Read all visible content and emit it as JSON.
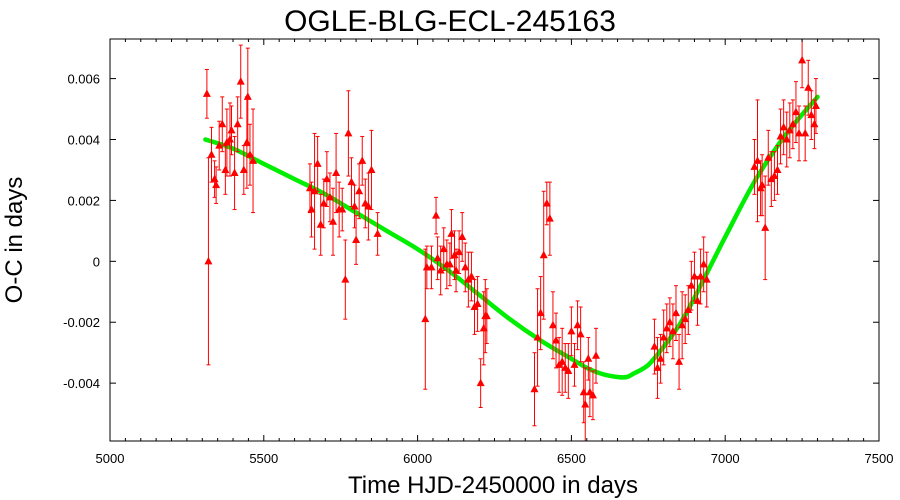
{
  "chart_data": {
    "type": "scatter",
    "title": "OGLE-BLG-ECL-245163",
    "xlabel": "Time HJD-2450000 in days",
    "ylabel": "O-C in days",
    "xlim": [
      5000,
      7500
    ],
    "ylim": [
      -0.0059,
      0.0073
    ],
    "grid": false,
    "x_ticks": [
      5000,
      5500,
      6000,
      6500,
      7000,
      7500
    ],
    "x_tick_labels": [
      "5000",
      "5500",
      "6000",
      "6500",
      "7000",
      "7500"
    ],
    "y_ticks": [
      -0.004,
      -0.002,
      0,
      0.002,
      0.004,
      0.006
    ],
    "y_tick_labels": [
      "-0.004",
      "-0.002",
      "0",
      "0.002",
      "0.004",
      "0.006"
    ],
    "colors": {
      "points": "#ff0000",
      "fit": "#00ee00",
      "axes": "#000000"
    },
    "series": [
      {
        "kind": "points_with_errorbars",
        "points": [
          {
            "x": 5315,
            "y": 0.0055,
            "err": 0.0008
          },
          {
            "x": 5320,
            "y": 0.0,
            "err": 0.0034
          },
          {
            "x": 5330,
            "y": 0.0035,
            "err": 0.0009
          },
          {
            "x": 5340,
            "y": 0.0027,
            "err": 0.0006
          },
          {
            "x": 5345,
            "y": 0.0025,
            "err": 0.0006
          },
          {
            "x": 5355,
            "y": 0.0038,
            "err": 0.0008
          },
          {
            "x": 5365,
            "y": 0.0045,
            "err": 0.0009
          },
          {
            "x": 5375,
            "y": 0.003,
            "err": 0.0008
          },
          {
            "x": 5380,
            "y": 0.0039,
            "err": 0.0011
          },
          {
            "x": 5390,
            "y": 0.004,
            "err": 0.0012
          },
          {
            "x": 5395,
            "y": 0.0043,
            "err": 0.0008
          },
          {
            "x": 5405,
            "y": 0.0029,
            "err": 0.0012
          },
          {
            "x": 5415,
            "y": 0.0045,
            "err": 0.0009
          },
          {
            "x": 5425,
            "y": 0.0059,
            "err": 0.0012
          },
          {
            "x": 5435,
            "y": 0.003,
            "err": 0.0008
          },
          {
            "x": 5445,
            "y": 0.0039,
            "err": 0.0015
          },
          {
            "x": 5448,
            "y": 0.0054,
            "err": 0.0016
          },
          {
            "x": 5455,
            "y": 0.0035,
            "err": 0.001
          },
          {
            "x": 5465,
            "y": 0.0033,
            "err": 0.0017
          },
          {
            "x": 5650,
            "y": 0.0024,
            "err": 0.0008
          },
          {
            "x": 5655,
            "y": 0.0017,
            "err": 0.0009
          },
          {
            "x": 5665,
            "y": 0.0023,
            "err": 0.0019
          },
          {
            "x": 5675,
            "y": 0.0032,
            "err": 0.0009
          },
          {
            "x": 5685,
            "y": 0.0012,
            "err": 0.001
          },
          {
            "x": 5695,
            "y": 0.0019,
            "err": 0.0008
          },
          {
            "x": 5705,
            "y": 0.0027,
            "err": 0.0009
          },
          {
            "x": 5715,
            "y": 0.0021,
            "err": 0.0008
          },
          {
            "x": 5725,
            "y": 0.0013,
            "err": 0.0011
          },
          {
            "x": 5735,
            "y": 0.0029,
            "err": 0.0013
          },
          {
            "x": 5745,
            "y": 0.0017,
            "err": 0.0009
          },
          {
            "x": 5755,
            "y": 0.0017,
            "err": 0.0007
          },
          {
            "x": 5765,
            "y": -0.0006,
            "err": 0.0013
          },
          {
            "x": 5775,
            "y": 0.0042,
            "err": 0.0014
          },
          {
            "x": 5785,
            "y": 0.0026,
            "err": 0.0008
          },
          {
            "x": 5795,
            "y": 0.0018,
            "err": 0.0007
          },
          {
            "x": 5800,
            "y": 0.0007,
            "err": 0.0008
          },
          {
            "x": 5810,
            "y": 0.0023,
            "err": 0.0009
          },
          {
            "x": 5820,
            "y": 0.0033,
            "err": 0.0008
          },
          {
            "x": 5830,
            "y": 0.0019,
            "err": 0.0008
          },
          {
            "x": 5840,
            "y": 0.0018,
            "err": 0.0011
          },
          {
            "x": 5850,
            "y": 0.003,
            "err": 0.0013
          },
          {
            "x": 5870,
            "y": 0.0009,
            "err": 0.0007
          },
          {
            "x": 6025,
            "y": -0.0019,
            "err": 0.0023
          },
          {
            "x": 6030,
            "y": -0.0002,
            "err": 0.0007
          },
          {
            "x": 6045,
            "y": -0.0002,
            "err": 0.0007
          },
          {
            "x": 6060,
            "y": 0.0015,
            "err": 0.0006
          },
          {
            "x": 6065,
            "y": 0.0001,
            "err": 0.0007
          },
          {
            "x": 6075,
            "y": -0.0003,
            "err": 0.0008
          },
          {
            "x": 6085,
            "y": 0.0004,
            "err": 0.0007
          },
          {
            "x": 6095,
            "y": -0.0001,
            "err": 0.0008
          },
          {
            "x": 6105,
            "y": -0.0001,
            "err": 0.0007
          },
          {
            "x": 6110,
            "y": 0.0009,
            "err": 0.0008
          },
          {
            "x": 6120,
            "y": 0.0002,
            "err": 0.0008
          },
          {
            "x": 6125,
            "y": -0.0003,
            "err": 0.0007
          },
          {
            "x": 6135,
            "y": 0.0003,
            "err": 0.0007
          },
          {
            "x": 6145,
            "y": 0.0008,
            "err": 0.0008
          },
          {
            "x": 6155,
            "y": -0.0002,
            "err": 0.0008
          },
          {
            "x": 6165,
            "y": -0.0006,
            "err": 0.0009
          },
          {
            "x": 6175,
            "y": -0.0005,
            "err": 0.0008
          },
          {
            "x": 6185,
            "y": -0.0015,
            "err": 0.0009
          },
          {
            "x": 6195,
            "y": -0.0014,
            "err": 0.0009
          },
          {
            "x": 6205,
            "y": -0.004,
            "err": 0.0008
          },
          {
            "x": 6215,
            "y": -0.0022,
            "err": 0.0012
          },
          {
            "x": 6220,
            "y": -0.0018,
            "err": 0.0012
          },
          {
            "x": 6225,
            "y": -0.0018,
            "err": 0.0009
          },
          {
            "x": 6380,
            "y": -0.0042,
            "err": 0.0012
          },
          {
            "x": 6390,
            "y": -0.0025,
            "err": 0.0016
          },
          {
            "x": 6400,
            "y": -0.0017,
            "err": 0.0012
          },
          {
            "x": 6410,
            "y": 0.0002,
            "err": 0.0021
          },
          {
            "x": 6420,
            "y": 0.0019,
            "err": 0.0007
          },
          {
            "x": 6430,
            "y": 0.0014,
            "err": 0.0012
          },
          {
            "x": 6440,
            "y": -0.0021,
            "err": 0.0011
          },
          {
            "x": 6450,
            "y": -0.0026,
            "err": 0.0009
          },
          {
            "x": 6460,
            "y": -0.0034,
            "err": 0.0009
          },
          {
            "x": 6470,
            "y": -0.0033,
            "err": 0.0011
          },
          {
            "x": 6480,
            "y": -0.0035,
            "err": 0.0008
          },
          {
            "x": 6490,
            "y": -0.0036,
            "err": 0.0009
          },
          {
            "x": 6500,
            "y": -0.0023,
            "err": 0.0008
          },
          {
            "x": 6510,
            "y": -0.0034,
            "err": 0.0007
          },
          {
            "x": 6520,
            "y": -0.0021,
            "err": 0.0008
          },
          {
            "x": 6530,
            "y": -0.0024,
            "err": 0.0009
          },
          {
            "x": 6540,
            "y": -0.0043,
            "err": 0.001
          },
          {
            "x": 6545,
            "y": -0.0047,
            "err": 0.0012
          },
          {
            "x": 6555,
            "y": -0.0032,
            "err": 0.0007
          },
          {
            "x": 6560,
            "y": -0.0043,
            "err": 0.0008
          },
          {
            "x": 6570,
            "y": -0.0044,
            "err": 0.0008
          },
          {
            "x": 6580,
            "y": -0.0031,
            "err": 0.0009
          },
          {
            "x": 6770,
            "y": -0.0028,
            "err": 0.0009
          },
          {
            "x": 6780,
            "y": -0.0035,
            "err": 0.001
          },
          {
            "x": 6790,
            "y": -0.0032,
            "err": 0.0008
          },
          {
            "x": 6800,
            "y": -0.0025,
            "err": 0.0009
          },
          {
            "x": 6810,
            "y": -0.0022,
            "err": 0.0008
          },
          {
            "x": 6820,
            "y": -0.002,
            "err": 0.0008
          },
          {
            "x": 6830,
            "y": -0.0023,
            "err": 0.0009
          },
          {
            "x": 6840,
            "y": -0.0017,
            "err": 0.0009
          },
          {
            "x": 6850,
            "y": -0.0033,
            "err": 0.0009
          },
          {
            "x": 6860,
            "y": -0.0021,
            "err": 0.0011
          },
          {
            "x": 6870,
            "y": -0.0019,
            "err": 0.0008
          },
          {
            "x": 6880,
            "y": -0.0016,
            "err": 0.0008
          },
          {
            "x": 6890,
            "y": -0.0008,
            "err": 0.0008
          },
          {
            "x": 6900,
            "y": -0.0005,
            "err": 0.0008
          },
          {
            "x": 6910,
            "y": -0.0013,
            "err": 0.0008
          },
          {
            "x": 6920,
            "y": -0.0005,
            "err": 0.0009
          },
          {
            "x": 6930,
            "y": -0.0001,
            "err": 0.0009
          },
          {
            "x": 6940,
            "y": -0.0006,
            "err": 0.0009
          },
          {
            "x": 7095,
            "y": 0.0031,
            "err": 0.0009
          },
          {
            "x": 7105,
            "y": 0.0033,
            "err": 0.002
          },
          {
            "x": 7115,
            "y": 0.0024,
            "err": 0.0009
          },
          {
            "x": 7120,
            "y": 0.0025,
            "err": 0.001
          },
          {
            "x": 7130,
            "y": 0.0011,
            "err": 0.0017
          },
          {
            "x": 7140,
            "y": 0.0034,
            "err": 0.0009
          },
          {
            "x": 7150,
            "y": 0.0027,
            "err": 0.0009
          },
          {
            "x": 7160,
            "y": 0.0028,
            "err": 0.0008
          },
          {
            "x": 7170,
            "y": 0.003,
            "err": 0.0008
          },
          {
            "x": 7180,
            "y": 0.0041,
            "err": 0.0009
          },
          {
            "x": 7190,
            "y": 0.0044,
            "err": 0.0009
          },
          {
            "x": 7200,
            "y": 0.004,
            "err": 0.0009
          },
          {
            "x": 7210,
            "y": 0.0043,
            "err": 0.0009
          },
          {
            "x": 7220,
            "y": 0.0045,
            "err": 0.0008
          },
          {
            "x": 7230,
            "y": 0.0049,
            "err": 0.001
          },
          {
            "x": 7240,
            "y": 0.0042,
            "err": 0.0009
          },
          {
            "x": 7250,
            "y": 0.0066,
            "err": 0.0009
          },
          {
            "x": 7260,
            "y": 0.0042,
            "err": 0.0009
          },
          {
            "x": 7270,
            "y": 0.0057,
            "err": 0.0009
          },
          {
            "x": 7280,
            "y": 0.0048,
            "err": 0.0008
          },
          {
            "x": 7290,
            "y": 0.0045,
            "err": 0.0008
          },
          {
            "x": 7295,
            "y": 0.0051,
            "err": 0.0009
          }
        ]
      },
      {
        "kind": "fit_curve",
        "x": [
          5310,
          5400,
          5500,
          5600,
          5700,
          5800,
          5900,
          6000,
          6100,
          6200,
          6300,
          6400,
          6500,
          6550,
          6600,
          6650,
          6680,
          6700,
          6750,
          6800,
          6850,
          6900,
          7000,
          7100,
          7200,
          7300
        ],
        "y": [
          0.004,
          0.0037,
          0.0032,
          0.0027,
          0.0022,
          0.0016,
          0.001,
          0.0004,
          -0.0003,
          -0.0011,
          -0.0019,
          -0.0026,
          -0.0032,
          -0.0035,
          -0.0037,
          -0.0038,
          -0.0038,
          -0.0037,
          -0.0034,
          -0.0028,
          -0.0021,
          -0.0012,
          0.0008,
          0.0027,
          0.0042,
          0.0054
        ]
      }
    ]
  }
}
